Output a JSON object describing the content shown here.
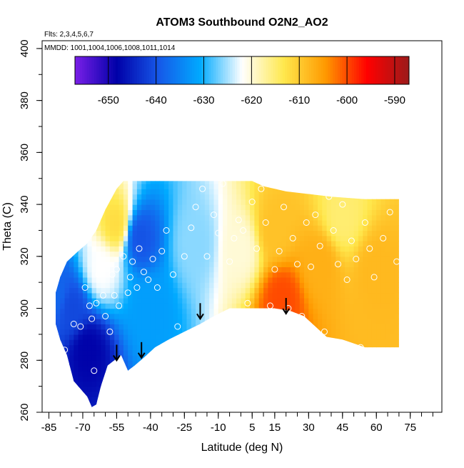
{
  "chart_data": {
    "type": "heatmap",
    "title": "ATOM3 Southbound O2N2_AO2",
    "annotations": {
      "flights": "Flts: 2,3,4,5,6,7",
      "dates": "MMDD: 1001,1004,1006,1008,1011,1014"
    },
    "xlabel": "Latitude (deg N)",
    "ylabel": "Theta (C)",
    "xlim": [
      -88,
      89
    ],
    "ylim": [
      260,
      403
    ],
    "x_ticks": [
      -85,
      -70,
      -55,
      -40,
      -25,
      -10,
      5,
      15,
      30,
      45,
      60,
      75
    ],
    "x_tick_labels": [
      "-85",
      "-70",
      "-55",
      "-40",
      "-25",
      "-10",
      "5",
      "15",
      "30",
      "45",
      "60",
      "75"
    ],
    "x_minor_step": 5,
    "y_ticks": [
      260,
      280,
      300,
      320,
      340,
      360,
      380,
      400
    ],
    "y_tick_labels": [
      "260",
      "280",
      "300",
      "320",
      "340",
      "360",
      "380",
      "400"
    ],
    "y_minor_step": 10,
    "colorbar": {
      "range": [
        -657,
        -587
      ],
      "ticks": [
        -650,
        -640,
        -630,
        -620,
        -610,
        -600,
        -590
      ],
      "tick_labels": [
        "-650",
        "-640",
        "-630",
        "-620",
        "-610",
        "-600",
        "-590"
      ],
      "colors": [
        "#7a1fe8",
        "#0000a8",
        "#1658e8",
        "#00aaff",
        "#ffffff",
        "#ffe84d",
        "#ff9900",
        "#ff0000",
        "#9b1b1b"
      ],
      "placement": "top-inside"
    },
    "value_field": {
      "lat_range": [
        -82,
        70
      ],
      "cells": [
        {
          "lat": -82,
          "theta": [
            300,
            310
          ],
          "value": -638
        },
        {
          "lat": -75,
          "theta": [
            280,
            320
          ],
          "value": -641
        },
        {
          "lat": -68,
          "theta": [
            268,
            300
          ],
          "value": -648
        },
        {
          "lat": -62,
          "theta": [
            300,
            330
          ],
          "value": -622
        },
        {
          "lat": -55,
          "theta": [
            320,
            345
          ],
          "value": -612
        },
        {
          "lat": -45,
          "theta": [
            315,
            340
          ],
          "value": -640
        },
        {
          "lat": -40,
          "theta": [
            290,
            310
          ],
          "value": -632
        },
        {
          "lat": -20,
          "theta": [
            305,
            345
          ],
          "value": -626
        },
        {
          "lat": 0,
          "theta": [
            300,
            345
          ],
          "value": -620
        },
        {
          "lat": 15,
          "theta": [
            320,
            340
          ],
          "value": -609
        },
        {
          "lat": 18,
          "theta": [
            297,
            310
          ],
          "value": -600
        },
        {
          "lat": 35,
          "theta": [
            300,
            335
          ],
          "value": -607
        },
        {
          "lat": 45,
          "theta": [
            325,
            345
          ],
          "value": -615
        },
        {
          "lat": 60,
          "theta": [
            290,
            340
          ],
          "value": -608
        }
      ]
    },
    "flight_points": [
      {
        "lat": -78,
        "theta": 284
      },
      {
        "lat": -74,
        "theta": 294
      },
      {
        "lat": -71,
        "theta": 293
      },
      {
        "lat": -69,
        "theta": 308
      },
      {
        "lat": -67,
        "theta": 301
      },
      {
        "lat": -66,
        "theta": 296
      },
      {
        "lat": -65,
        "theta": 276
      },
      {
        "lat": -64,
        "theta": 302
      },
      {
        "lat": -63,
        "theta": 313
      },
      {
        "lat": -61,
        "theta": 305
      },
      {
        "lat": -60,
        "theta": 297
      },
      {
        "lat": -58,
        "theta": 291
      },
      {
        "lat": -57,
        "theta": 313
      },
      {
        "lat": -56,
        "theta": 305
      },
      {
        "lat": -55,
        "theta": 315
      },
      {
        "lat": -54,
        "theta": 301
      },
      {
        "lat": -52,
        "theta": 320
      },
      {
        "lat": -50,
        "theta": 306
      },
      {
        "lat": -49,
        "theta": 312
      },
      {
        "lat": -48,
        "theta": 318
      },
      {
        "lat": -46,
        "theta": 308
      },
      {
        "lat": -45,
        "theta": 323
      },
      {
        "lat": -43,
        "theta": 314
      },
      {
        "lat": -41,
        "theta": 311
      },
      {
        "lat": -39,
        "theta": 319
      },
      {
        "lat": -37,
        "theta": 308
      },
      {
        "lat": -35,
        "theta": 322
      },
      {
        "lat": -33,
        "theta": 330
      },
      {
        "lat": -30,
        "theta": 313
      },
      {
        "lat": -28,
        "theta": 293
      },
      {
        "lat": -25,
        "theta": 320
      },
      {
        "lat": -22,
        "theta": 331
      },
      {
        "lat": -20,
        "theta": 339
      },
      {
        "lat": -17,
        "theta": 346
      },
      {
        "lat": -15,
        "theta": 320
      },
      {
        "lat": -12,
        "theta": 336
      },
      {
        "lat": -10,
        "theta": 329
      },
      {
        "lat": -8,
        "theta": 348
      },
      {
        "lat": -5,
        "theta": 318
      },
      {
        "lat": -3,
        "theta": 327
      },
      {
        "lat": -1,
        "theta": 334
      },
      {
        "lat": 1,
        "theta": 330
      },
      {
        "lat": 3,
        "theta": 302
      },
      {
        "lat": 5,
        "theta": 341
      },
      {
        "lat": 7,
        "theta": 323
      },
      {
        "lat": 9,
        "theta": 346
      },
      {
        "lat": 11,
        "theta": 333
      },
      {
        "lat": 13,
        "theta": 301
      },
      {
        "lat": 15,
        "theta": 315
      },
      {
        "lat": 17,
        "theta": 322
      },
      {
        "lat": 19,
        "theta": 339
      },
      {
        "lat": 21,
        "theta": 300
      },
      {
        "lat": 23,
        "theta": 327
      },
      {
        "lat": 25,
        "theta": 317
      },
      {
        "lat": 27,
        "theta": 297
      },
      {
        "lat": 29,
        "theta": 333
      },
      {
        "lat": 31,
        "theta": 316
      },
      {
        "lat": 33,
        "theta": 336
      },
      {
        "lat": 35,
        "theta": 324
      },
      {
        "lat": 37,
        "theta": 291
      },
      {
        "lat": 39,
        "theta": 343
      },
      {
        "lat": 41,
        "theta": 330
      },
      {
        "lat": 43,
        "theta": 317
      },
      {
        "lat": 45,
        "theta": 340
      },
      {
        "lat": 47,
        "theta": 311
      },
      {
        "lat": 49,
        "theta": 326
      },
      {
        "lat": 51,
        "theta": 319
      },
      {
        "lat": 53,
        "theta": 285
      },
      {
        "lat": 55,
        "theta": 333
      },
      {
        "lat": 57,
        "theta": 323
      },
      {
        "lat": 59,
        "theta": 312
      },
      {
        "lat": 63,
        "theta": 327
      },
      {
        "lat": 66,
        "theta": 337
      },
      {
        "lat": 69,
        "theta": 318
      }
    ],
    "arrows": [
      {
        "lat": -55,
        "theta": 286
      },
      {
        "lat": -44,
        "theta": 287
      },
      {
        "lat": -18,
        "theta": 302
      },
      {
        "lat": 20,
        "theta": 304
      }
    ]
  }
}
